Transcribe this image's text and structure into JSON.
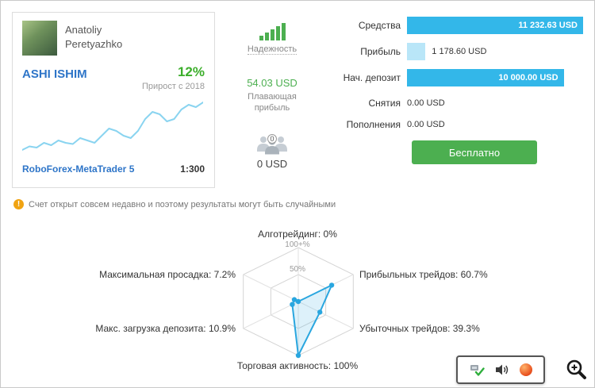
{
  "account_card": {
    "trader_name": "Anatoliy Peretyazhko",
    "account_name": "ASHI ISHIM",
    "growth_value": "12%",
    "growth_caption": "Прирост с 2018",
    "broker_name": "RoboForex-MetaTrader 5",
    "leverage": "1:300"
  },
  "middle_panel": {
    "reliability_label": "Надежность",
    "floating_profit_value": "54.03 USD",
    "floating_profit_caption": "Плавающая прибыль",
    "investors_count": "0",
    "investors_funds": "0 USD"
  },
  "stats": {
    "rows": [
      {
        "label": "Средства",
        "value": "11 232.63 USD",
        "bar_pct": 100,
        "style": "solid"
      },
      {
        "label": "Прибыль",
        "value": "1 178.60 USD",
        "bar_pct": 10.5,
        "style": "light"
      },
      {
        "label": "Нач. депозит",
        "value": "10 000.00 USD",
        "bar_pct": 89,
        "style": "solid"
      },
      {
        "label": "Снятия",
        "value": "0.00 USD",
        "bar_pct": 0,
        "style": "none"
      },
      {
        "label": "Пополнения",
        "value": "0.00 USD",
        "bar_pct": 0,
        "style": "none"
      }
    ],
    "subscribe_button_label": "Бесплатно"
  },
  "notice": {
    "icon": "!",
    "text": "Счет открыт совсем недавно и поэтому результаты могут быть случайными"
  },
  "chart_data": [
    {
      "type": "line",
      "name": "growth-sparkline",
      "title": "Прирост с 2018",
      "xlabel": "",
      "ylabel": "",
      "values": [
        10,
        13,
        12,
        16,
        14,
        18,
        16,
        15,
        20,
        18,
        16,
        22,
        28,
        26,
        22,
        20,
        26,
        36,
        42,
        40,
        34,
        36,
        44,
        48,
        46,
        50
      ],
      "color": "#8ad4f0"
    },
    {
      "type": "radar",
      "name": "trading-stats-radar",
      "axes": [
        "Алготрейдинг",
        "Прибыльных трейдов",
        "Убыточных трейдов",
        "Торговая активность",
        "Макс. загрузка депозита",
        "Максимальная просадка"
      ],
      "values": [
        0,
        60.7,
        39.3,
        100,
        10.9,
        7.2
      ],
      "axis_labels": [
        "Алготрейдинг: 0%",
        "Прибыльных трейдов: 60.7%",
        "Убыточных трейдов: 39.3%",
        "Торговая активность: 100%",
        "Макс. загрузка депозита: 10.9%",
        "Максимальная просадка: 7.2%"
      ],
      "ring_labels": [
        "100+%",
        "50%"
      ],
      "max": 100,
      "color": "#29a6df"
    }
  ],
  "tray_popup": {
    "icons": [
      "safely-remove-hardware-icon",
      "volume-icon",
      "security-icon"
    ]
  },
  "colors": {
    "bar_solid": "#33b7e9",
    "bar_light": "#b9e6f8",
    "accent_blue": "#2e75c8",
    "accent_green": "#3cae2b",
    "button_green": "#4caf50"
  }
}
